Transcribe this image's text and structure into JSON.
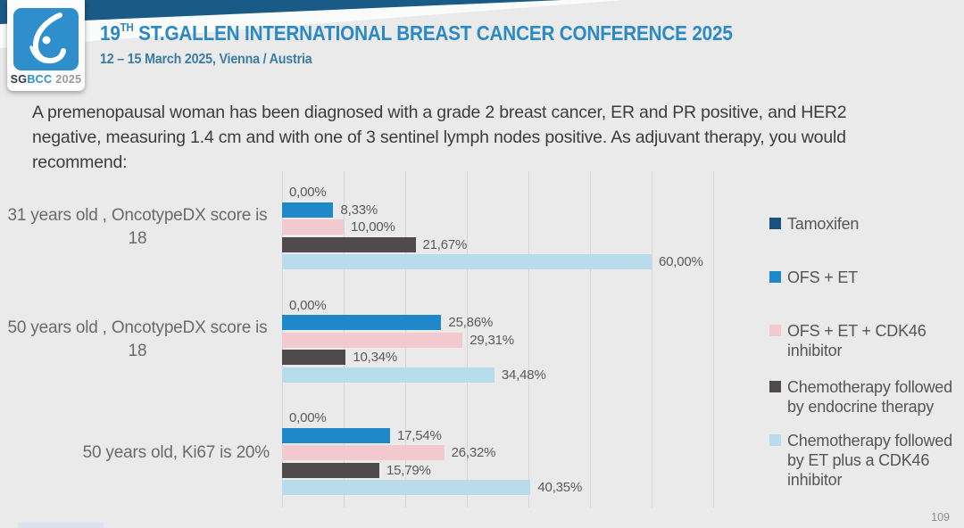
{
  "header": {
    "logo": {
      "icon": "breast-outline-icon",
      "sg": "SG",
      "bcc": "BCC",
      "year": "2025"
    },
    "title_prefix": "19",
    "title_superscript": "TH",
    "title_rest": " ST.GALLEN INTERNATIONAL BREAST CANCER CONFERENCE 2025",
    "subtitle": "12 – 15 March 2025, Vienna / Austria"
  },
  "question": "A premenopausal woman has been diagnosed with a grade 2 breast cancer, ER and PR positive, and HER2 negative, measuring 1.4 cm and with one of 3 sentinel lymph nodes positive. As adjuvant therapy, you would recommend:",
  "page_number": "109",
  "chart_data": {
    "type": "bar",
    "orientation": "horizontal",
    "title": "",
    "categories": [
      "31 years old , OncotypeDX score is 18",
      "50 years old , OncotypeDX score is 18",
      "50 years old, Ki67 is 20%"
    ],
    "series": [
      {
        "name": "Tamoxifen",
        "color": "#19537d",
        "values": [
          0.0,
          0.0,
          0.0
        ],
        "labels": [
          "0,00%",
          "0,00%",
          "0,00%"
        ]
      },
      {
        "name": "OFS + ET",
        "color": "#1f88ca",
        "values": [
          8.33,
          25.86,
          17.54
        ],
        "labels": [
          "8,33%",
          "25,86%",
          "17,54%"
        ]
      },
      {
        "name": "OFS + ET + CDK46 inhibitor",
        "color": "#f2c9cf",
        "values": [
          10.0,
          29.31,
          26.32
        ],
        "labels": [
          "10,00%",
          "29,31%",
          "26,32%"
        ]
      },
      {
        "name": "Chemotherapy followed by endocrine therapy",
        "color": "#4f4a4c",
        "values": [
          21.67,
          10.34,
          15.79
        ],
        "labels": [
          "21,67%",
          "10,34%",
          "15,79%"
        ]
      },
      {
        "name": "Chemotherapy followed by ET plus a CDK46 inhibitor",
        "color": "#b9dcec",
        "values": [
          60.0,
          34.48,
          40.35
        ],
        "labels": [
          "60,00%",
          "34,48%",
          "40,35%"
        ]
      }
    ],
    "xlim": [
      0,
      70
    ],
    "gridline_step": 10,
    "grid": true,
    "legend_position": "right",
    "value_label_decimal_separator": ","
  }
}
